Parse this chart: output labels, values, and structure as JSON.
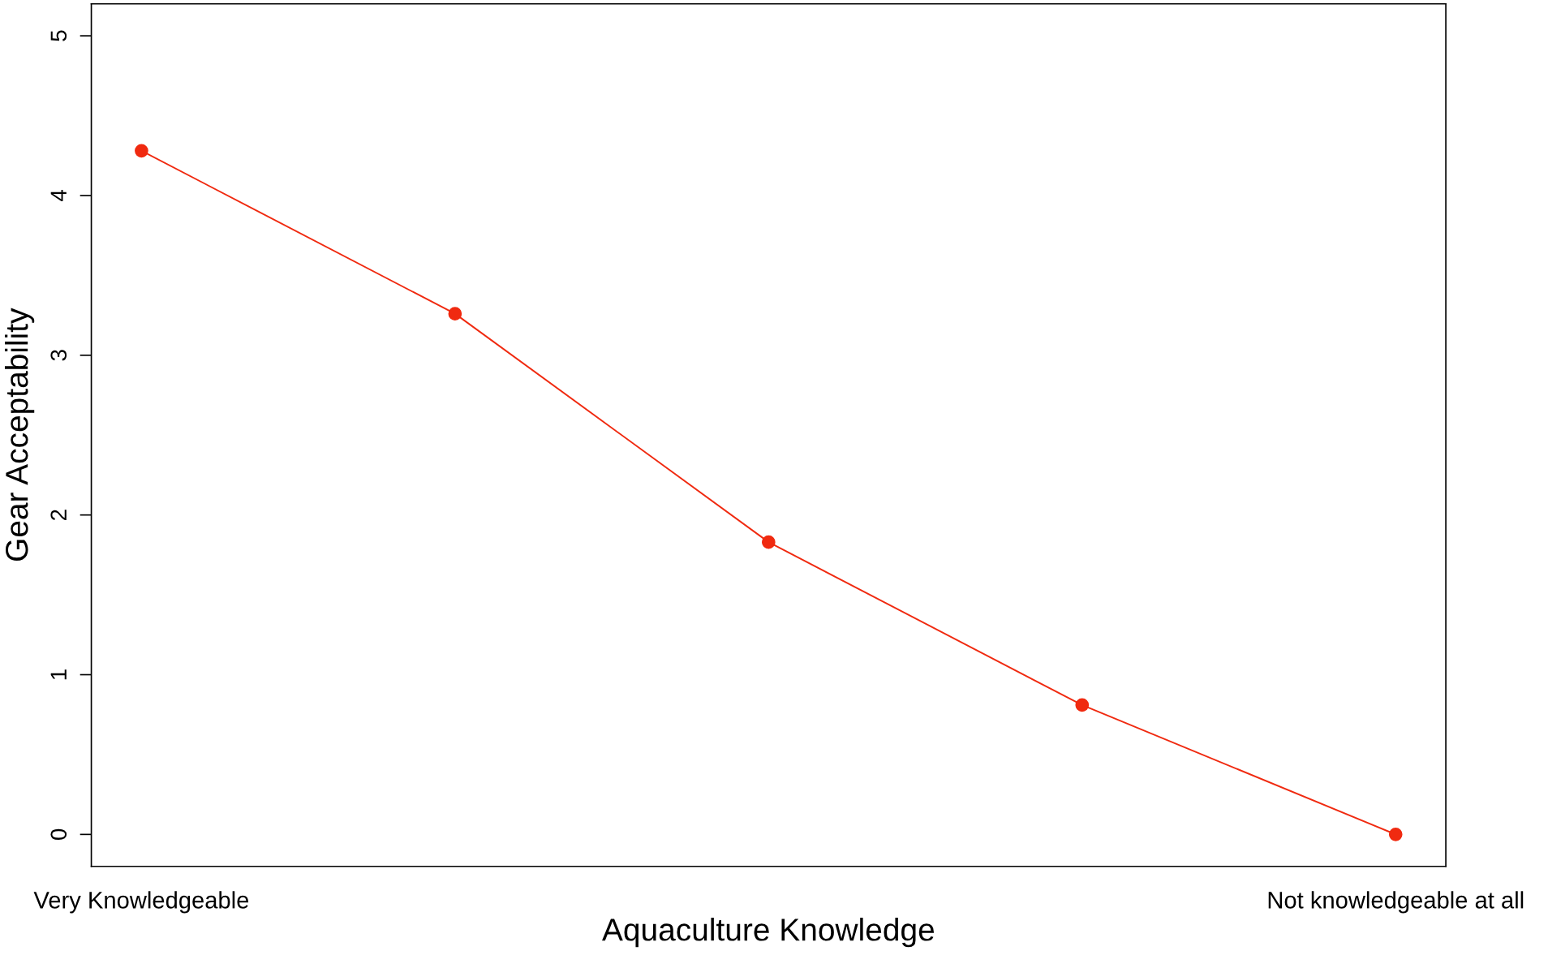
{
  "chart_data": {
    "type": "line",
    "xlabel": "Aquaculture Knowledge",
    "ylabel": "Gear Acceptability",
    "categories": [
      "Very Knowledgeable",
      null,
      null,
      null,
      "Not knowledgeable at all"
    ],
    "series": [
      {
        "color": "#f02a10",
        "values": [
          4.28,
          3.26,
          1.83,
          0.81,
          0.0
        ]
      }
    ],
    "ylim": [
      -0.2,
      5.2
    ],
    "yticks": [
      0,
      1,
      2,
      3,
      4,
      5
    ],
    "marker": "circle",
    "line_style": "solid",
    "grid": false,
    "legend": false
  }
}
